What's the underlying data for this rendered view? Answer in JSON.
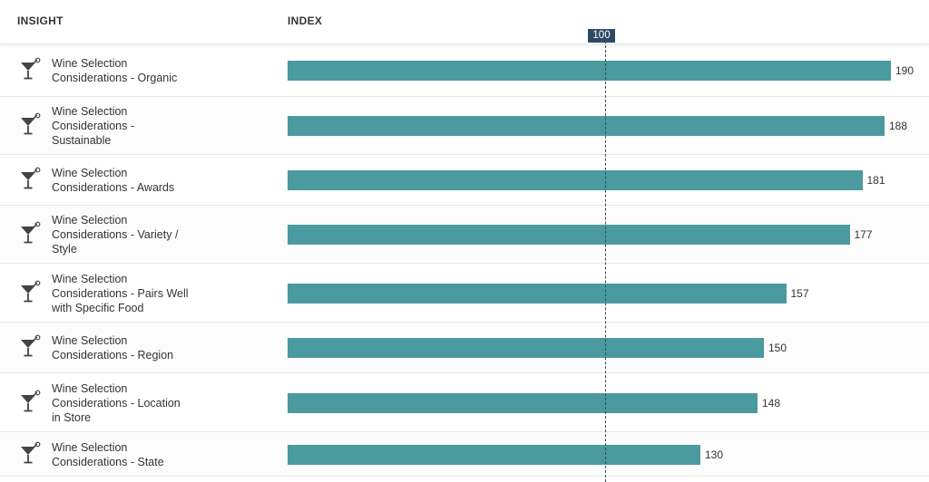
{
  "header": {
    "insight_label": "INSIGHT",
    "index_label": "INDEX"
  },
  "reference": {
    "value": 100,
    "label": "100"
  },
  "colors": {
    "bar": "#4a9aa0",
    "reference": "#2e4a63",
    "icon": "#444444"
  },
  "icon": "cocktail-glass-icon",
  "chart_data": {
    "type": "bar",
    "orientation": "horizontal",
    "categories": [
      "Wine Selection Considerations - Organic",
      "Wine Selection Considerations - Sustainable",
      "Wine Selection Considerations - Awards",
      "Wine Selection Considerations - Variety / Style",
      "Wine Selection Considerations - Pairs Well with Specific Food",
      "Wine Selection Considerations - Region",
      "Wine Selection Considerations - Location in Store",
      "Wine Selection Considerations - State"
    ],
    "values": [
      190,
      188,
      181,
      177,
      157,
      150,
      148,
      130
    ],
    "value_labels": [
      "190",
      "188",
      "181",
      "177",
      "157",
      "150",
      "148",
      "130"
    ],
    "xlabel": "INDEX",
    "ylabel": "INSIGHT",
    "reference_line": 100,
    "grid": false
  }
}
